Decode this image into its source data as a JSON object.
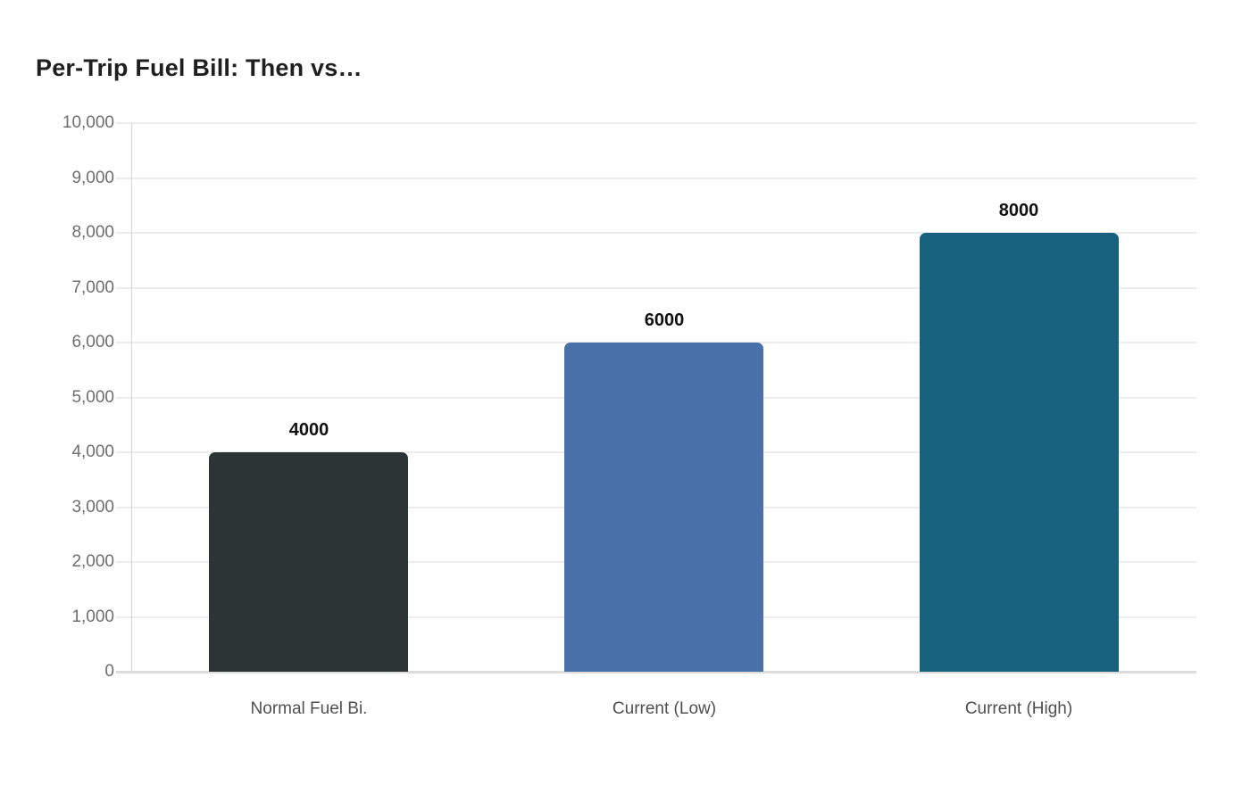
{
  "chart_data": {
    "type": "bar",
    "title": "Per-Trip Fuel Bill: Then vs…",
    "categories": [
      "Normal Fuel Bi.",
      "Current (Low)",
      "Current (High)"
    ],
    "values": [
      4000,
      6000,
      8000
    ],
    "value_labels": [
      "4000",
      "6000",
      "8000"
    ],
    "bar_colors": [
      "#2d3436",
      "#4a70a8",
      "#17617f"
    ],
    "xlabel": "",
    "ylabel": "",
    "ylim": [
      0,
      10000
    ],
    "y_ticks": [
      0,
      1000,
      2000,
      3000,
      4000,
      5000,
      6000,
      7000,
      8000,
      9000,
      10000
    ],
    "y_tick_labels": [
      "0",
      "1,000",
      "2,000",
      "3,000",
      "4,000",
      "5,000",
      "6,000",
      "7,000",
      "8,000",
      "9,000",
      "10,000"
    ],
    "grid": true,
    "legend": false,
    "styles": {
      "title_color": "#1f1f1f",
      "grid_color": "#ededed",
      "zero_line_color": "#dcdcdc",
      "axis_line_color": "#d6d6d6",
      "y_tick_label_color": "#6e6e6e",
      "x_tick_label_color": "#4f4f4f",
      "value_label_color": "#111111",
      "background": "#ffffff"
    }
  }
}
